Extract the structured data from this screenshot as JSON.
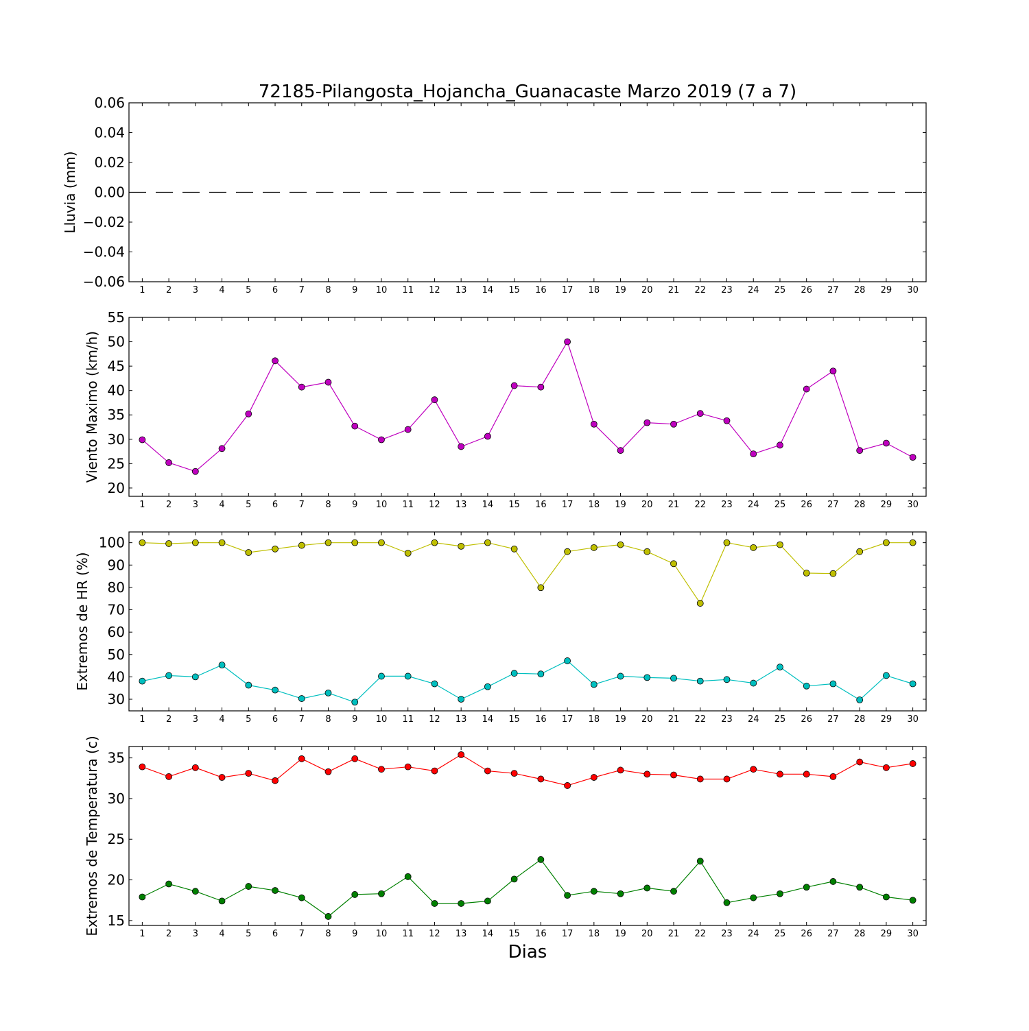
{
  "chart_data": {
    "title": "72185-Pilangosta_Hojancha_Guanacaste Marzo 2019  (7 a 7)",
    "xlabel": "Dias",
    "x": [
      1,
      2,
      3,
      4,
      5,
      6,
      7,
      8,
      9,
      10,
      11,
      12,
      13,
      14,
      15,
      16,
      17,
      18,
      19,
      20,
      21,
      22,
      23,
      24,
      25,
      26,
      27,
      28,
      29,
      30
    ],
    "xlim": [
      0.5,
      30.5
    ],
    "subplots": [
      {
        "type": "line",
        "ylabel": "Lluvia (mm)",
        "ylim": [
          -0.06,
          0.06
        ],
        "yticks": [
          -0.06,
          -0.04,
          -0.02,
          0.0,
          0.02,
          0.04,
          0.06
        ],
        "ytick_labels": [
          "−0.06",
          "−0.04",
          "−0.02",
          "0.00",
          "0.02",
          "0.04",
          "0.06"
        ],
        "series": [
          {
            "values": [
              0,
              0,
              0,
              0,
              0,
              0,
              0,
              0,
              0,
              0,
              0,
              0,
              0,
              0,
              0,
              0,
              0,
              0,
              0,
              0,
              0,
              0,
              0,
              0,
              0,
              0,
              0,
              0,
              0,
              0
            ],
            "color": "#000000",
            "style": "dashed",
            "markers": false
          }
        ]
      },
      {
        "type": "line",
        "ylabel": "Viento Maximo (km/h)",
        "ylim": [
          18.3,
          55
        ],
        "yticks": [
          20,
          25,
          30,
          35,
          40,
          45,
          50,
          55
        ],
        "ytick_labels": [
          "20",
          "25",
          "30",
          "35",
          "40",
          "45",
          "50",
          "55"
        ],
        "series": [
          {
            "values": [
              29.9,
              25.2,
              23.4,
              28.1,
              35.2,
              46.1,
              40.7,
              41.7,
              32.7,
              29.9,
              32.0,
              38.1,
              28.5,
              30.6,
              41.0,
              40.7,
              50.0,
              33.1,
              27.7,
              33.4,
              33.1,
              35.3,
              33.8,
              27.0,
              28.8,
              40.3,
              44.0,
              27.7,
              29.2,
              26.3
            ],
            "color": "#bf00bf",
            "style": "solid",
            "markers": true
          }
        ]
      },
      {
        "type": "line",
        "ylabel": "Extremos de HR (%)",
        "ylim": [
          24.8,
          104.8
        ],
        "yticks": [
          30,
          40,
          50,
          60,
          70,
          80,
          90,
          100
        ],
        "ytick_labels": [
          "30",
          "40",
          "50",
          "60",
          "70",
          "80",
          "90",
          "100"
        ],
        "series": [
          {
            "values": [
              100,
              99.6,
              100,
              100,
              95.6,
              97.2,
              98.8,
              100,
              100,
              100,
              95.3,
              100,
              98.4,
              100,
              97.2,
              79.9,
              96.0,
              97.8,
              99.1,
              96.0,
              90.6,
              72.9,
              100,
              97.8,
              99.1,
              86.4,
              86.2,
              96.0,
              100,
              100
            ],
            "color": "#bfbf00",
            "style": "solid",
            "markers": true
          },
          {
            "values": [
              38.1,
              40.6,
              40.0,
              45.3,
              36.3,
              34.1,
              30.3,
              32.8,
              28.7,
              40.3,
              40.3,
              36.9,
              30.0,
              35.6,
              41.6,
              41.3,
              47.2,
              36.6,
              40.3,
              39.7,
              39.4,
              38.1,
              38.8,
              37.2,
              44.4,
              35.9,
              36.9,
              29.7,
              40.6,
              36.9
            ],
            "color": "#00bfbf",
            "style": "solid",
            "markers": true
          }
        ]
      },
      {
        "type": "line",
        "ylabel": "Extremos de Temperatura (c)",
        "ylim": [
          14.4,
          36.4
        ],
        "yticks": [
          15,
          20,
          25,
          30,
          35
        ],
        "ytick_labels": [
          "15",
          "20",
          "25",
          "30",
          "35"
        ],
        "series": [
          {
            "values": [
              33.9,
              32.7,
              33.8,
              32.6,
              33.1,
              32.2,
              34.9,
              33.3,
              34.9,
              33.6,
              33.9,
              33.4,
              35.4,
              33.4,
              33.1,
              32.4,
              31.6,
              32.6,
              33.5,
              33.0,
              32.9,
              32.4,
              32.4,
              33.6,
              33.0,
              33.0,
              32.7,
              34.5,
              33.8,
              34.3
            ],
            "color": "#ff0000",
            "style": "solid",
            "markers": true
          },
          {
            "values": [
              17.9,
              19.5,
              18.6,
              17.4,
              19.2,
              18.7,
              17.8,
              15.5,
              18.2,
              18.3,
              20.4,
              17.1,
              17.1,
              17.4,
              20.1,
              22.5,
              18.1,
              18.6,
              18.3,
              19.0,
              18.6,
              22.3,
              17.2,
              17.8,
              18.3,
              19.1,
              19.8,
              19.1,
              17.9,
              17.5
            ],
            "color": "#008000",
            "style": "solid",
            "markers": true
          }
        ]
      }
    ]
  }
}
